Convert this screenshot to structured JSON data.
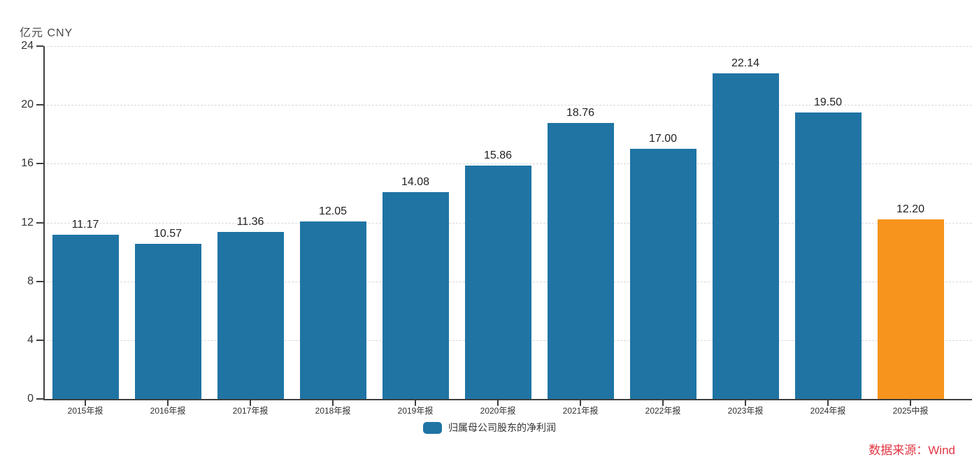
{
  "chart": {
    "unit_label": "亿元 CNY",
    "accent_blue": "#1f74a4",
    "accent_orange": "#f7941d",
    "source_color": "#e13743"
  },
  "chart_data": {
    "type": "bar",
    "title": "",
    "ylabel": "亿元 CNY",
    "xlabel": "",
    "categories": [
      "2015年报",
      "2016年报",
      "2017年报",
      "2018年报",
      "2019年报",
      "2020年报",
      "2021年报",
      "2022年报",
      "2023年报",
      "2024年报",
      "2025中报"
    ],
    "values": [
      11.17,
      10.57,
      11.36,
      12.05,
      14.08,
      15.86,
      18.76,
      17.0,
      22.14,
      19.5,
      12.2
    ],
    "value_labels": [
      "11.17",
      "10.57",
      "11.36",
      "12.05",
      "14.08",
      "15.86",
      "18.76",
      "17.00",
      "22.14",
      "19.50",
      "12.20"
    ],
    "yticks": [
      0,
      4,
      8,
      12,
      16,
      20,
      24
    ],
    "ylim": [
      0,
      24
    ],
    "grid": true,
    "bar_color_default": "#1f74a4",
    "bar_color_highlight": "#f7941d",
    "highlight_index": 10,
    "legend": [
      "归属母公司股东的净利润"
    ],
    "legend_position": "bottom-center",
    "source_note": "数据来源：Wind"
  }
}
